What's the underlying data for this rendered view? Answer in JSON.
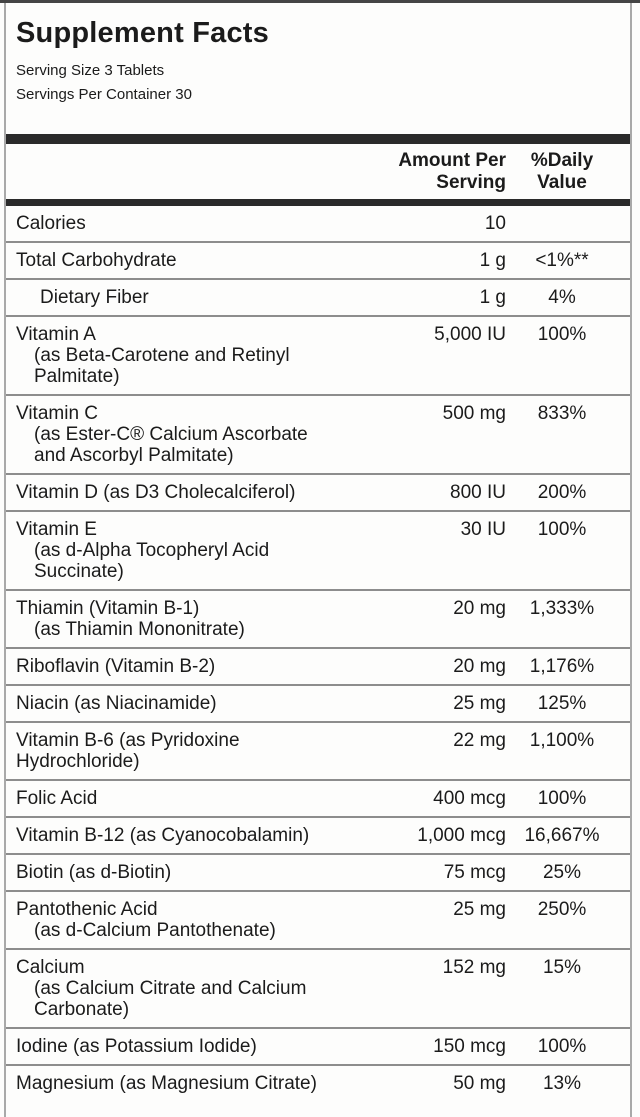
{
  "colors": {
    "text": "#1b1b1b",
    "thick_bar": "#2a2a2a",
    "thin_rule": "#8d8d8d",
    "border": "#a9a9a9"
  },
  "label": {
    "title": "Supplement Facts",
    "serving_size": "Serving Size 3 Tablets",
    "servings_per_container": "Servings Per Container 30"
  },
  "table": {
    "headers": {
      "amount": "Amount Per Serving",
      "daily_value": "%Daily Value"
    },
    "rows": [
      {
        "name": "Calories",
        "sub": [],
        "indented": false,
        "sub_indent": true,
        "amount": "10",
        "dv": ""
      },
      {
        "name": "Total Carbohydrate",
        "sub": [],
        "indented": false,
        "sub_indent": true,
        "amount": "1 g",
        "dv": "<1%**"
      },
      {
        "name": "Dietary Fiber",
        "sub": [],
        "indented": true,
        "sub_indent": true,
        "amount": "1 g",
        "dv": "4%"
      },
      {
        "name": "Vitamin A",
        "sub": [
          "(as Beta-Carotene and Retinyl",
          "Palmitate)"
        ],
        "indented": false,
        "sub_indent": true,
        "amount": "5,000 IU",
        "dv": "100%"
      },
      {
        "name": "Vitamin C",
        "sub": [
          "(as Ester-C® Calcium Ascorbate",
          "and Ascorbyl Palmitate)"
        ],
        "indented": false,
        "sub_indent": true,
        "amount": "500 mg",
        "dv": "833%"
      },
      {
        "name": "Vitamin D (as D3 Cholecalciferol)",
        "sub": [],
        "indented": false,
        "sub_indent": true,
        "amount": "800 IU",
        "dv": "200%"
      },
      {
        "name": "Vitamin E",
        "sub": [
          "(as d-Alpha Tocopheryl Acid",
          "Succinate)"
        ],
        "indented": false,
        "sub_indent": true,
        "amount": "30 IU",
        "dv": "100%"
      },
      {
        "name": "Thiamin (Vitamin B-1)",
        "sub": [
          "(as Thiamin Mononitrate)"
        ],
        "indented": false,
        "sub_indent": true,
        "amount": "20 mg",
        "dv": "1,333%"
      },
      {
        "name": "Riboflavin (Vitamin B-2)",
        "sub": [],
        "indented": false,
        "sub_indent": true,
        "amount": "20 mg",
        "dv": "1,176%"
      },
      {
        "name": "Niacin (as Niacinamide)",
        "sub": [],
        "indented": false,
        "sub_indent": true,
        "amount": "25 mg",
        "dv": "125%"
      },
      {
        "name": "Vitamin B-6 (as Pyridoxine",
        "sub": [
          "Hydrochloride)"
        ],
        "indented": false,
        "sub_indent": false,
        "amount": "22 mg",
        "dv": "1,100%"
      },
      {
        "name": "Folic Acid",
        "sub": [],
        "indented": false,
        "sub_indent": true,
        "amount": "400 mcg",
        "dv": "100%"
      },
      {
        "name": "Vitamin B-12 (as Cyanocobalamin)",
        "sub": [],
        "indented": false,
        "sub_indent": true,
        "amount": "1,000 mcg",
        "dv": "16,667%"
      },
      {
        "name": "Biotin (as d-Biotin)",
        "sub": [],
        "indented": false,
        "sub_indent": true,
        "amount": "75 mcg",
        "dv": "25%"
      },
      {
        "name": "Pantothenic Acid",
        "sub": [
          "(as d-Calcium Pantothenate)"
        ],
        "indented": false,
        "sub_indent": true,
        "amount": "25 mg",
        "dv": "250%"
      },
      {
        "name": "Calcium",
        "sub": [
          "(as Calcium Citrate and Calcium",
          "Carbonate)"
        ],
        "indented": false,
        "sub_indent": true,
        "amount": "152 mg",
        "dv": "15%"
      },
      {
        "name": "Iodine (as Potassium Iodide)",
        "sub": [],
        "indented": false,
        "sub_indent": true,
        "amount": "150 mcg",
        "dv": "100%"
      },
      {
        "name": "Magnesium (as Magnesium Citrate)",
        "sub": [],
        "indented": false,
        "sub_indent": true,
        "amount": "50 mg",
        "dv": "13%"
      }
    ]
  }
}
